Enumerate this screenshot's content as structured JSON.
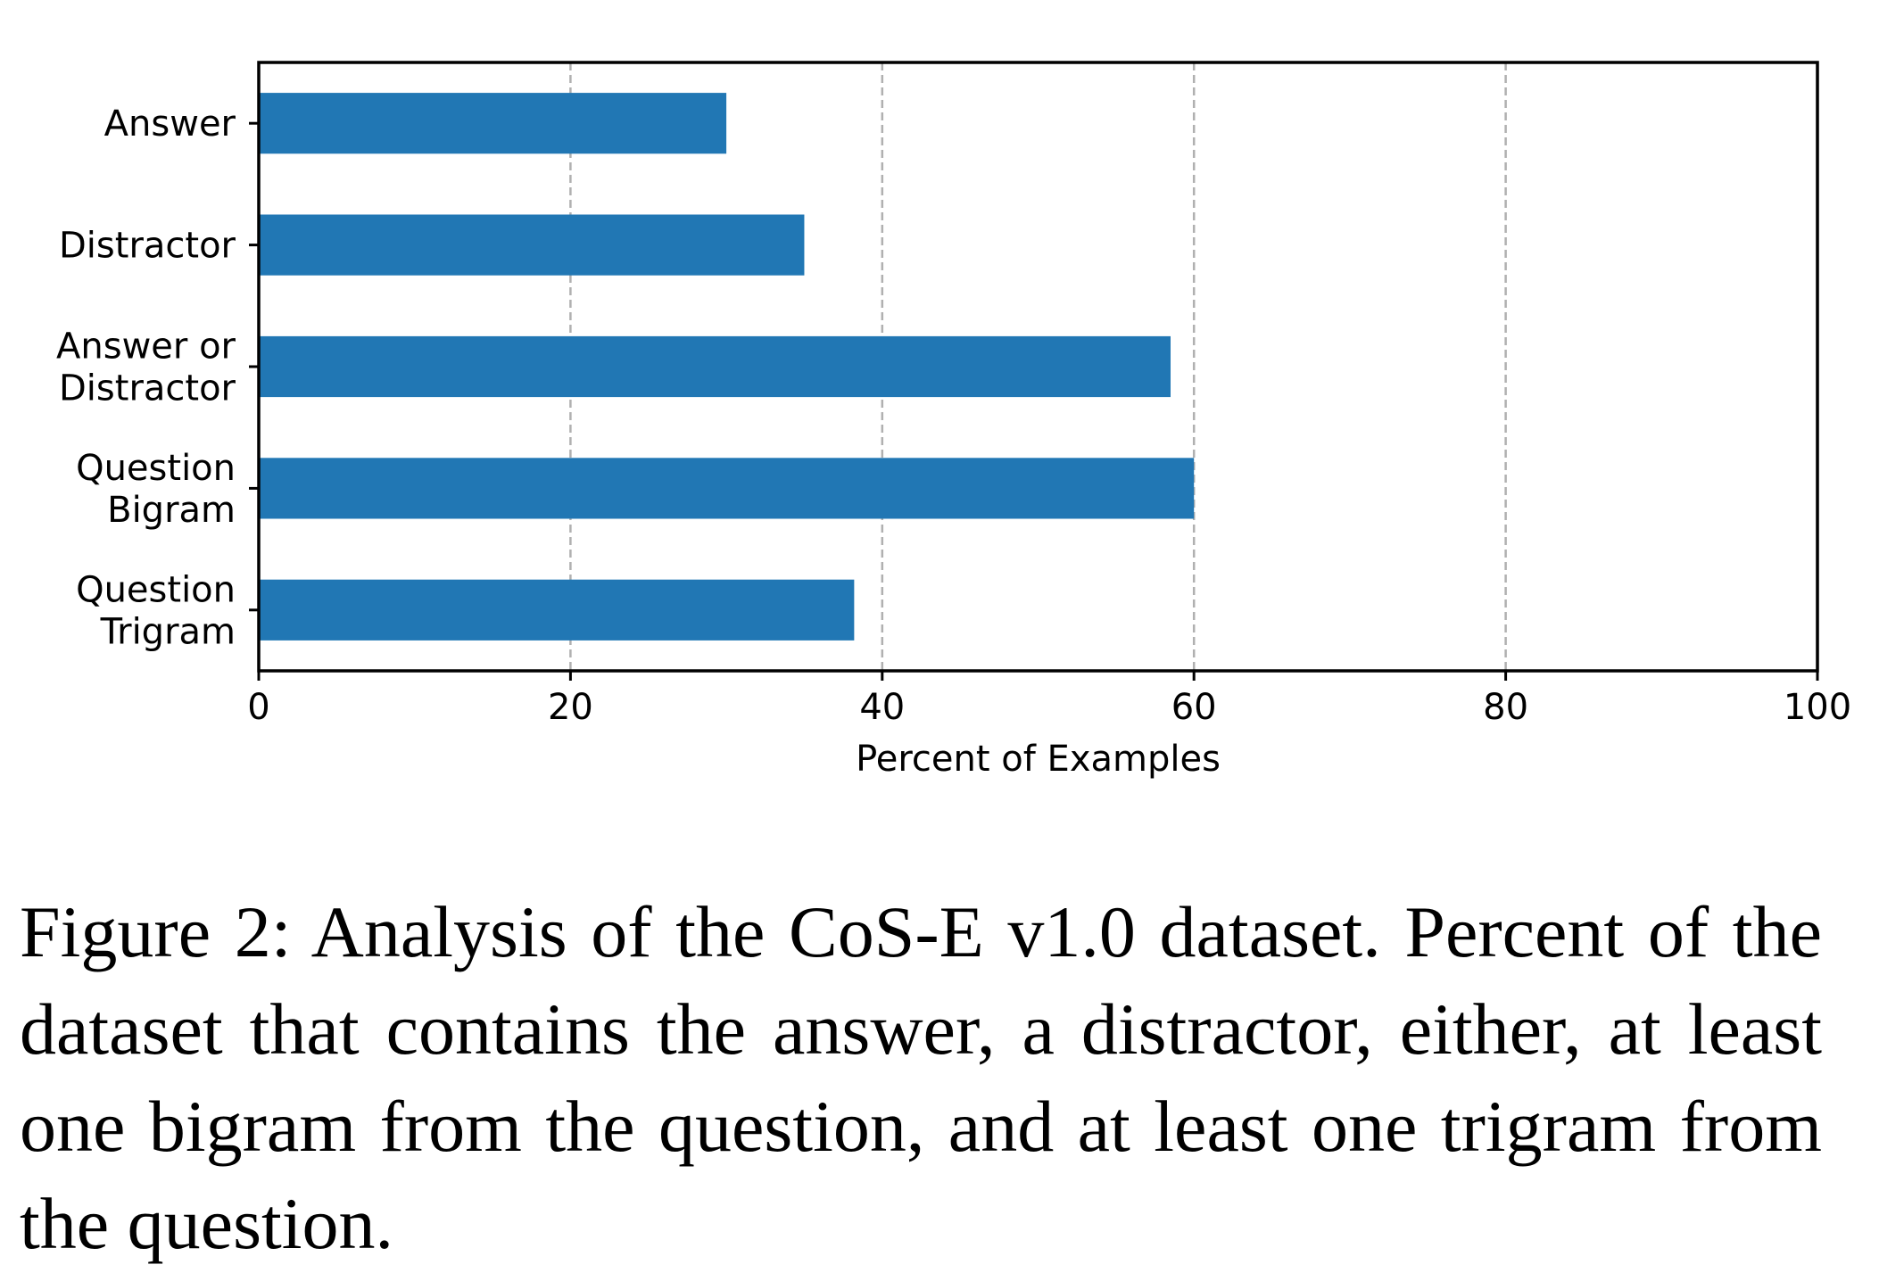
{
  "chart_data": {
    "type": "bar",
    "orientation": "horizontal",
    "categories": [
      [
        "Answer"
      ],
      [
        "Distractor"
      ],
      [
        "Answer or",
        "Distractor"
      ],
      [
        "Question",
        "Bigram"
      ],
      [
        "Question",
        "Trigram"
      ]
    ],
    "values": [
      30.0,
      35.0,
      58.5,
      60.0,
      38.2
    ],
    "xlabel": "Percent of Examples",
    "ylabel": "",
    "xlim": [
      0,
      100
    ],
    "xticks": [
      0,
      20,
      40,
      60,
      80,
      100
    ],
    "grid": "vertical dashed",
    "bar_color": "#2177b4",
    "grid_color": "#b0b0b0"
  },
  "caption": "Figure 2: Analysis of the CoS-E v1.0 dataset. Percent of the dataset that contains the answer, a distractor, ei­ther, at least one bigram from the question, and at least one trigram from the question."
}
